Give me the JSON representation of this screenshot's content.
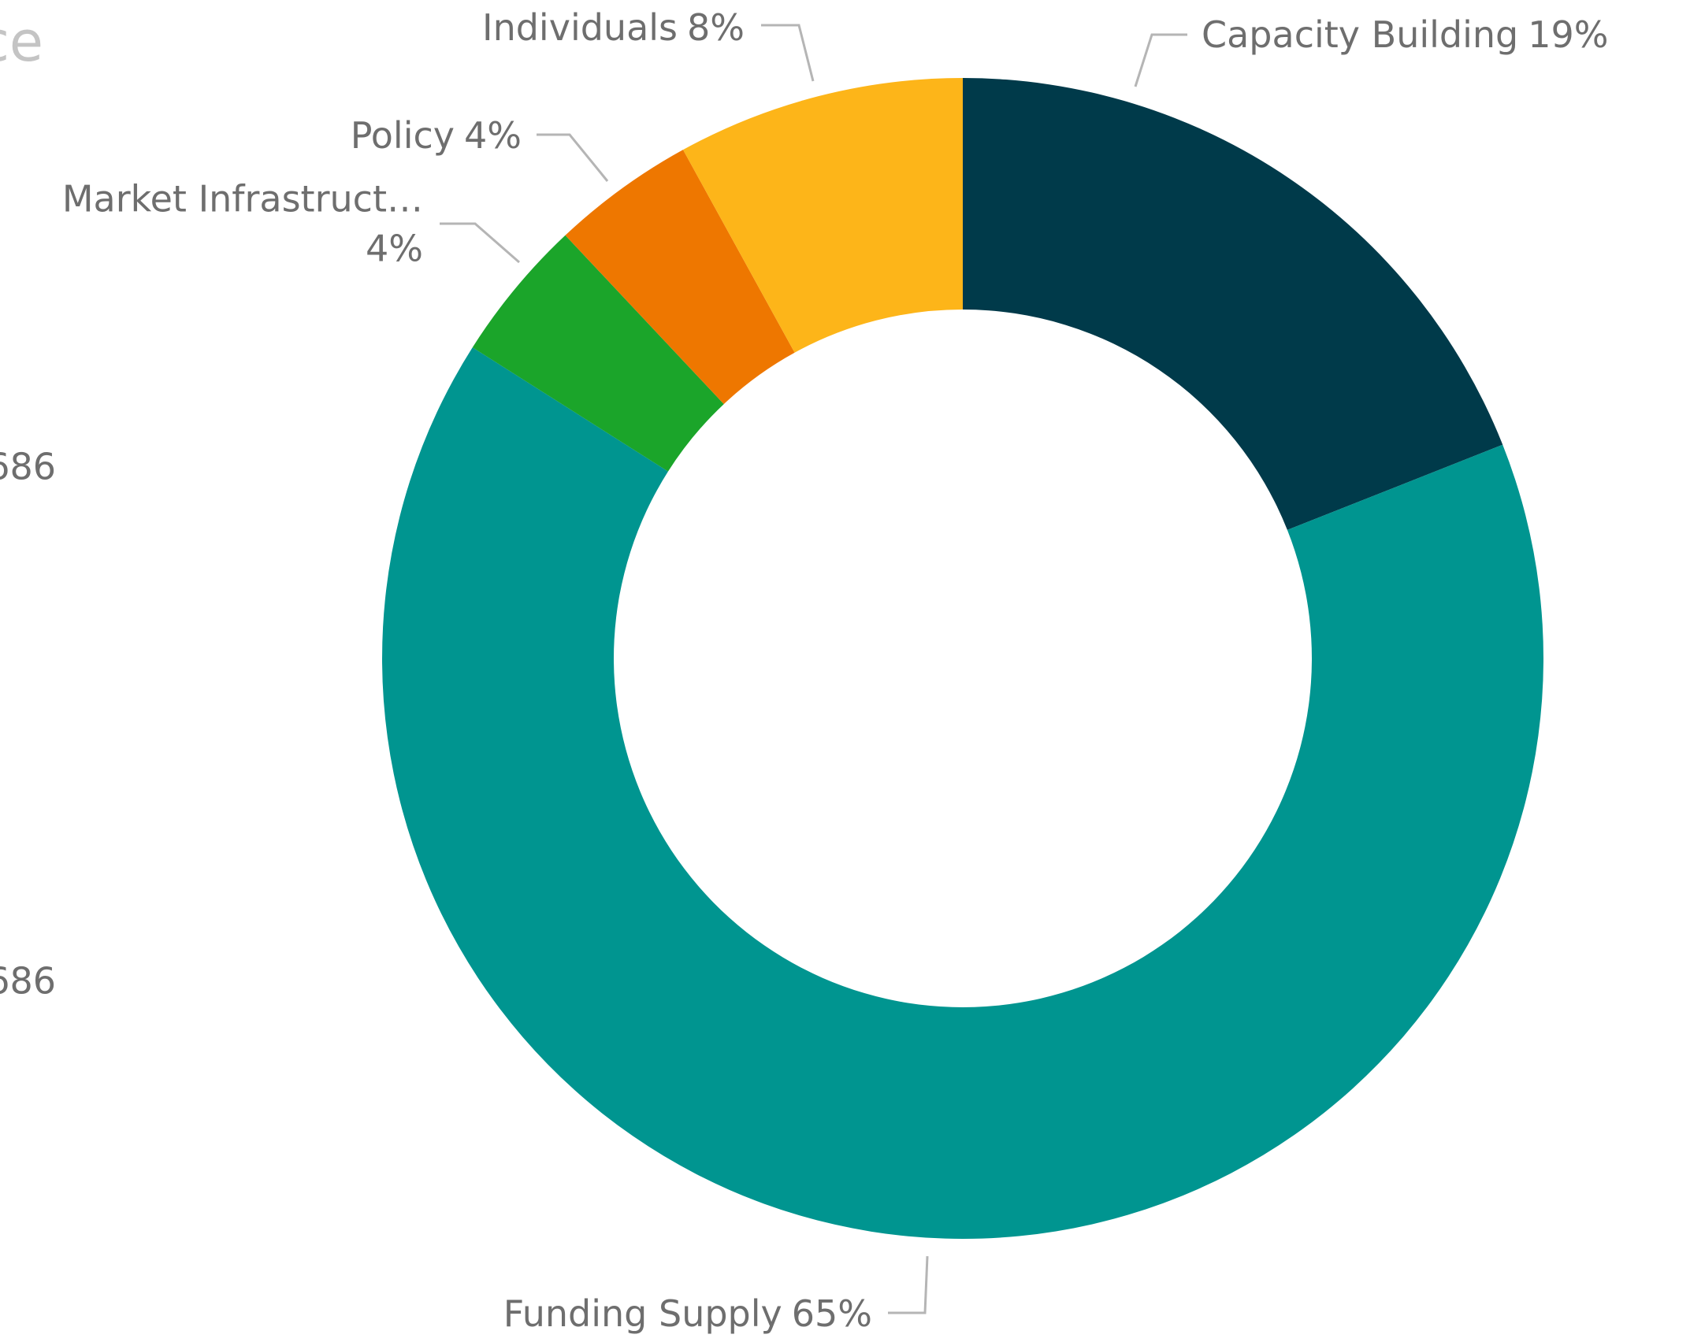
{
  "chart_data": {
    "type": "donut",
    "categories": [
      "Capacity Building",
      "Funding Supply",
      "Market Infrastruct…",
      "Policy",
      "Individuals"
    ],
    "values": [
      19,
      65,
      4,
      4,
      8
    ],
    "value_labels": [
      "19%",
      "65%",
      "4%",
      "4%",
      "8%"
    ],
    "colors": [
      "#003a4a",
      "#009590",
      "#1ba52a",
      "#ee7700",
      "#fdb519"
    ],
    "clipped_texts": [
      "ce",
      "686",
      "686"
    ]
  }
}
